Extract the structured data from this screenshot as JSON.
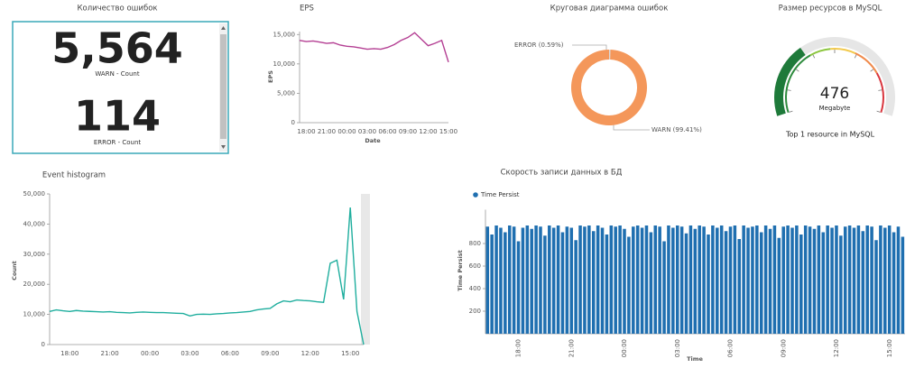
{
  "chart_data": [
    {
      "type": "metric",
      "title": "Количество ошибок",
      "categories": [
        "WARN - Count",
        "ERROR - Count"
      ],
      "values": [
        5564,
        114
      ],
      "value_labels": [
        "5,564",
        "114"
      ]
    },
    {
      "type": "line",
      "title": "EPS",
      "ylabel": "EPS",
      "xlabel": "Date",
      "categories": [
        null,
        "18:00",
        null,
        null,
        "21:00",
        null,
        null,
        "00:00",
        null,
        null,
        "03:00",
        null,
        null,
        "06:00",
        null,
        null,
        "09:00",
        null,
        null,
        "12:00",
        null,
        null,
        "15:00"
      ],
      "values": [
        14000,
        13800,
        13900,
        13700,
        13500,
        13600,
        13200,
        13000,
        12900,
        12700,
        12500,
        12600,
        12500,
        12800,
        13300,
        14000,
        14500,
        15300,
        14200,
        13100,
        13500,
        14000,
        10300
      ],
      "color": "#b43f93",
      "ylim": [
        0,
        15500
      ],
      "yticks": [
        0,
        {
          "value": 5000,
          "label": "5,000"
        },
        {
          "value": 10000,
          "label": "10,000"
        },
        {
          "value": 15000,
          "label": "15,000"
        }
      ]
    },
    {
      "type": "pie",
      "title": "Круговая диаграмма ошибок",
      "values": [
        0.59,
        99.41
      ],
      "value_labels": [
        "ERROR (0.59%)",
        "WARN (99.41%)"
      ],
      "colors": [
        "#d9d9d9",
        "#f4975a"
      ]
    },
    {
      "type": "gauge",
      "title": "Размер ресурсов в MySQL",
      "value": 476,
      "unit": "Megabyte",
      "subtitle": "Top 1 resource in MySQL",
      "color": "#1e7a3a",
      "ylim": [
        0,
        1400
      ]
    },
    {
      "type": "line",
      "title": "Event histogram",
      "ylabel": "Count",
      "categories": [
        null,
        null,
        null,
        "18:00",
        null,
        null,
        null,
        null,
        null,
        "21:00",
        null,
        null,
        null,
        null,
        null,
        "00:00",
        null,
        null,
        null,
        null,
        null,
        "03:00",
        null,
        null,
        null,
        null,
        null,
        "06:00",
        null,
        null,
        null,
        null,
        null,
        "09:00",
        null,
        null,
        null,
        null,
        null,
        "12:00",
        null,
        null,
        null,
        null,
        null,
        "15:00",
        null,
        null
      ],
      "values": [
        11000,
        11500,
        11200,
        11000,
        11300,
        11100,
        11000,
        10900,
        10800,
        10900,
        10700,
        10600,
        10500,
        10700,
        10800,
        10700,
        10600,
        10600,
        10500,
        10400,
        10300,
        9500,
        10000,
        10100,
        10000,
        10200,
        10300,
        10500,
        10600,
        10800,
        11000,
        11500,
        11800,
        12000,
        13500,
        14500,
        14200,
        14800,
        14600,
        14500,
        14200,
        14000,
        27000,
        28000,
        15000,
        45500,
        11000,
        0
      ],
      "color": "#1fae9e",
      "ylim": [
        0,
        50000
      ],
      "yticks": [
        0,
        {
          "value": 10000,
          "label": "10,000"
        },
        {
          "value": 20000,
          "label": "20,000"
        },
        {
          "value": 30000,
          "label": "30,000"
        },
        {
          "value": 40000,
          "label": "40,000"
        },
        {
          "value": 50000,
          "label": "50,000"
        }
      ]
    },
    {
      "type": "bar",
      "title": "Скорость записи данных в БД",
      "ylabel": "Time Persist",
      "xlabel": "Time",
      "categories": [
        null,
        null,
        null,
        null,
        null,
        null,
        null,
        "18:00",
        null,
        null,
        null,
        null,
        null,
        null,
        null,
        null,
        null,
        null,
        null,
        "21:00",
        null,
        null,
        null,
        null,
        null,
        null,
        null,
        null,
        null,
        null,
        null,
        "00:00",
        null,
        null,
        null,
        null,
        null,
        null,
        null,
        null,
        null,
        null,
        null,
        "03:00",
        null,
        null,
        null,
        null,
        null,
        null,
        null,
        null,
        null,
        null,
        null,
        "06:00",
        null,
        null,
        null,
        null,
        null,
        null,
        null,
        null,
        null,
        null,
        null,
        "09:00",
        null,
        null,
        null,
        null,
        null,
        null,
        null,
        null,
        null,
        null,
        null,
        "12:00",
        null,
        null,
        null,
        null,
        null,
        null,
        null,
        null,
        null,
        null,
        null,
        "15:00",
        null,
        null,
        null
      ],
      "series": [
        {
          "name": "Time Persist",
          "color": "#1f6fb0",
          "values": [
            950,
            880,
            960,
            940,
            900,
            960,
            950,
            820,
            940,
            960,
            930,
            960,
            950,
            870,
            960,
            940,
            960,
            900,
            950,
            940,
            830,
            960,
            950,
            960,
            910,
            960,
            940,
            880,
            960,
            950,
            960,
            930,
            860,
            950,
            960,
            940,
            960,
            900,
            960,
            950,
            820,
            960,
            940,
            960,
            950,
            890,
            960,
            930,
            960,
            950,
            880,
            960,
            940,
            960,
            910,
            950,
            960,
            840,
            960,
            940,
            950,
            960,
            900,
            960,
            930,
            960,
            850,
            950,
            960,
            940,
            960,
            880,
            960,
            950,
            930,
            960,
            900,
            960,
            940,
            960,
            870,
            950,
            960,
            940,
            960,
            910,
            960,
            950,
            830,
            960,
            940,
            960,
            900,
            950,
            860
          ]
        }
      ],
      "ylim": [
        0,
        1100
      ],
      "yticks": [
        200,
        400,
        600,
        800
      ]
    }
  ]
}
